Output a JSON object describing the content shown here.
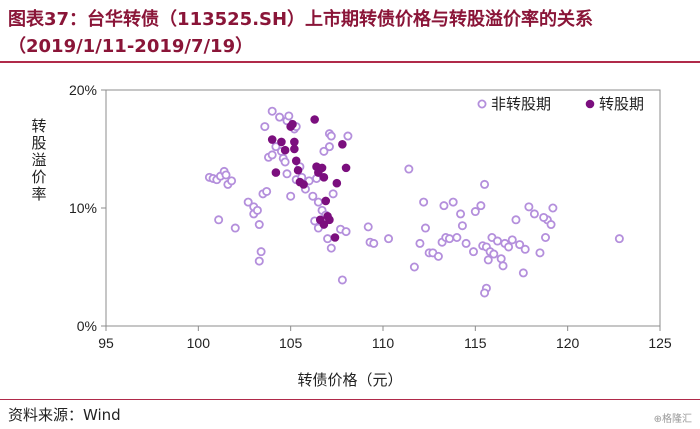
{
  "header": {
    "title_line1": "图表37：台华转债（113525.SH）上市期转债价格与转股溢价率的关系",
    "title_line2": "（2019/1/11-2019/7/19）"
  },
  "footer": {
    "source": "资料来源：Wind",
    "watermark": "⊕格隆汇"
  },
  "colors": {
    "title": "#8a1538",
    "series_before": "#b48fdc",
    "series_after": "#7b0f7e"
  },
  "chart_data": {
    "type": "scatter",
    "xlabel": "转债价格（元）",
    "ylabel": "转股溢价率",
    "xlim": [
      95,
      125
    ],
    "ylim": [
      0,
      20
    ],
    "xticks": [
      "95",
      "100",
      "105",
      "110",
      "115",
      "120",
      "125"
    ],
    "yticks": [
      "0%",
      "10%",
      "20%"
    ],
    "legend_position": "top-right",
    "series": [
      {
        "name": "非转股期",
        "marker": "hollow-circle",
        "points": [
          [
            100.6,
            12.6
          ],
          [
            100.8,
            12.5
          ],
          [
            101.0,
            12.4
          ],
          [
            101.2,
            12.7
          ],
          [
            101.4,
            13.1
          ],
          [
            101.5,
            12.8
          ],
          [
            101.6,
            12.0
          ],
          [
            101.8,
            12.3
          ],
          [
            101.1,
            9.0
          ],
          [
            102.0,
            8.3
          ],
          [
            102.7,
            10.5
          ],
          [
            103.0,
            9.5
          ],
          [
            103.0,
            10.1
          ],
          [
            103.2,
            9.8
          ],
          [
            103.3,
            8.6
          ],
          [
            103.5,
            11.2
          ],
          [
            103.7,
            11.4
          ],
          [
            103.4,
            6.3
          ],
          [
            103.3,
            5.5
          ],
          [
            103.8,
            14.3
          ],
          [
            104.0,
            14.5
          ],
          [
            104.0,
            18.2
          ],
          [
            104.2,
            15.2
          ],
          [
            104.4,
            17.7
          ],
          [
            104.5,
            14.8
          ],
          [
            104.6,
            14.2
          ],
          [
            104.7,
            13.9
          ],
          [
            104.8,
            12.9
          ],
          [
            103.6,
            16.9
          ],
          [
            104.8,
            17.4
          ],
          [
            104.9,
            17.8
          ],
          [
            105.2,
            16.7
          ],
          [
            105.3,
            16.9
          ],
          [
            105.0,
            11.0
          ],
          [
            105.3,
            12.4
          ],
          [
            105.5,
            13.5
          ],
          [
            105.6,
            12.6
          ],
          [
            105.8,
            11.6
          ],
          [
            106.0,
            12.3
          ],
          [
            106.2,
            11.0
          ],
          [
            106.4,
            12.5
          ],
          [
            106.5,
            10.5
          ],
          [
            106.7,
            9.8
          ],
          [
            106.9,
            9.4
          ],
          [
            106.3,
            8.9
          ],
          [
            106.5,
            8.3
          ],
          [
            106.8,
            8.9
          ],
          [
            107.0,
            7.4
          ],
          [
            107.1,
            16.3
          ],
          [
            107.2,
            16.1
          ],
          [
            107.1,
            15.2
          ],
          [
            106.8,
            14.8
          ],
          [
            108.1,
            16.1
          ],
          [
            107.3,
            11.2
          ],
          [
            107.7,
            8.2
          ],
          [
            108.0,
            8.0
          ],
          [
            107.8,
            3.9
          ],
          [
            109.2,
            8.4
          ],
          [
            109.3,
            7.1
          ],
          [
            109.5,
            7.0
          ],
          [
            107.2,
            6.6
          ],
          [
            110.3,
            7.4
          ],
          [
            111.4,
            13.3
          ],
          [
            111.7,
            5.0
          ],
          [
            112.0,
            7.0
          ],
          [
            112.2,
            10.5
          ],
          [
            112.3,
            8.3
          ],
          [
            112.5,
            6.2
          ],
          [
            112.7,
            6.2
          ],
          [
            113.0,
            5.9
          ],
          [
            113.2,
            7.1
          ],
          [
            113.4,
            7.5
          ],
          [
            113.6,
            7.4
          ],
          [
            114.0,
            7.5
          ],
          [
            113.3,
            10.2
          ],
          [
            113.8,
            10.5
          ],
          [
            114.2,
            9.5
          ],
          [
            114.3,
            8.5
          ],
          [
            114.5,
            7.0
          ],
          [
            114.9,
            6.3
          ],
          [
            115.0,
            9.7
          ],
          [
            115.3,
            10.2
          ],
          [
            115.4,
            6.8
          ],
          [
            115.5,
            12.0
          ],
          [
            115.6,
            6.7
          ],
          [
            115.7,
            5.6
          ],
          [
            115.8,
            6.3
          ],
          [
            115.9,
            7.5
          ],
          [
            116.0,
            6.1
          ],
          [
            116.2,
            7.2
          ],
          [
            116.4,
            5.7
          ],
          [
            116.5,
            5.1
          ],
          [
            116.6,
            7.0
          ],
          [
            116.8,
            6.7
          ],
          [
            115.6,
            3.2
          ],
          [
            115.5,
            2.8
          ],
          [
            117.0,
            7.3
          ],
          [
            117.2,
            9.0
          ],
          [
            117.4,
            6.9
          ],
          [
            117.6,
            4.5
          ],
          [
            117.7,
            6.5
          ],
          [
            117.9,
            10.1
          ],
          [
            118.2,
            9.5
          ],
          [
            118.5,
            6.2
          ],
          [
            118.8,
            7.5
          ],
          [
            118.9,
            9.0
          ],
          [
            119.1,
            8.6
          ],
          [
            119.2,
            10.0
          ],
          [
            118.7,
            9.2
          ],
          [
            122.8,
            7.4
          ]
        ]
      },
      {
        "name": "转股期",
        "marker": "filled-circle",
        "points": [
          [
            104.0,
            15.8
          ],
          [
            104.2,
            13.0
          ],
          [
            104.5,
            15.6
          ],
          [
            104.7,
            14.9
          ],
          [
            105.0,
            16.9
          ],
          [
            105.1,
            17.1
          ],
          [
            105.2,
            15.0
          ],
          [
            105.3,
            14.0
          ],
          [
            105.4,
            13.2
          ],
          [
            105.5,
            12.2
          ],
          [
            105.7,
            12.0
          ],
          [
            105.2,
            15.6
          ],
          [
            106.3,
            17.5
          ],
          [
            106.4,
            13.5
          ],
          [
            106.5,
            13.0
          ],
          [
            106.7,
            13.4
          ],
          [
            106.8,
            12.6
          ],
          [
            106.9,
            10.6
          ],
          [
            107.0,
            9.3
          ],
          [
            107.1,
            9.0
          ],
          [
            107.4,
            7.5
          ],
          [
            107.5,
            12.1
          ],
          [
            107.8,
            15.4
          ],
          [
            108.0,
            13.4
          ],
          [
            106.6,
            9.0
          ],
          [
            106.8,
            8.6
          ]
        ]
      }
    ]
  }
}
